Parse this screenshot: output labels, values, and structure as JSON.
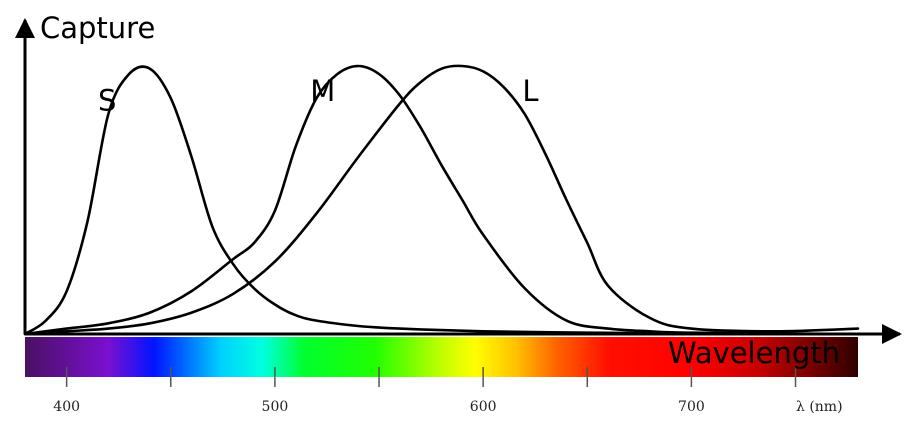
{
  "chart_data": {
    "type": "line",
    "ylabel": "Capture",
    "xlabel": "Wavelength",
    "unit_label": "λ (nm)",
    "xlim": [
      380,
      780
    ],
    "ylim": [
      0,
      1
    ],
    "x_ticks": [
      400,
      450,
      500,
      550,
      600,
      650,
      700,
      750
    ],
    "x_tick_labels": [
      {
        "value": 400,
        "label": "400"
      },
      {
        "value": 500,
        "label": "500"
      },
      {
        "value": 600,
        "label": "600"
      },
      {
        "value": 700,
        "label": "700"
      }
    ],
    "grid": false,
    "spectrum_bar": true,
    "series": [
      {
        "name": "S",
        "x": [
          380,
          390,
          400,
          410,
          420,
          430,
          440,
          450,
          460,
          470,
          480,
          490,
          500,
          510,
          520,
          540,
          560,
          600,
          650,
          700,
          780
        ],
        "values": [
          0.0,
          0.05,
          0.16,
          0.42,
          0.82,
          0.97,
          0.99,
          0.88,
          0.66,
          0.4,
          0.26,
          0.17,
          0.11,
          0.07,
          0.05,
          0.03,
          0.02,
          0.01,
          0.005,
          0.002,
          0.0
        ]
      },
      {
        "name": "M",
        "x": [
          380,
          400,
          420,
          440,
          460,
          480,
          490,
          500,
          510,
          520,
          530,
          540,
          550,
          560,
          570,
          580,
          590,
          600,
          620,
          640,
          660,
          680,
          700,
          780
        ],
        "values": [
          0.0,
          0.02,
          0.04,
          0.08,
          0.16,
          0.28,
          0.34,
          0.46,
          0.7,
          0.88,
          0.97,
          1.0,
          0.97,
          0.89,
          0.77,
          0.63,
          0.5,
          0.37,
          0.17,
          0.05,
          0.02,
          0.01,
          0.005,
          0.0
        ]
      },
      {
        "name": "L",
        "x": [
          380,
          400,
          420,
          440,
          460,
          480,
          500,
          520,
          540,
          560,
          570,
          580,
          590,
          600,
          610,
          620,
          630,
          640,
          650,
          660,
          680,
          700,
          740,
          780
        ],
        "values": [
          0.0,
          0.01,
          0.02,
          0.04,
          0.08,
          0.15,
          0.27,
          0.45,
          0.66,
          0.86,
          0.94,
          0.99,
          1.0,
          0.98,
          0.92,
          0.82,
          0.67,
          0.5,
          0.34,
          0.18,
          0.06,
          0.02,
          0.01,
          0.02
        ]
      }
    ],
    "line_color": "#000000"
  }
}
